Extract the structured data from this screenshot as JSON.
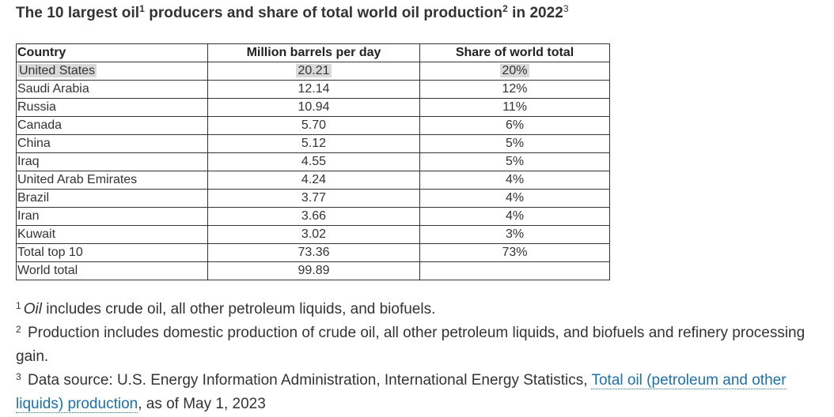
{
  "title": {
    "text_a": "The 10 largest oil",
    "sup_a": "1",
    "text_b": " producers and share of total world oil production",
    "sup_b": "2",
    "text_c": " in 2022",
    "sup_c": "3"
  },
  "table": {
    "headers": {
      "country": "Country",
      "mbd": "Million barrels per day",
      "share": "Share of world total"
    },
    "rows": [
      {
        "country": "United States",
        "mbd": "20.21",
        "share": "20%"
      },
      {
        "country": "Saudi Arabia",
        "mbd": "12.14",
        "share": "12%"
      },
      {
        "country": "Russia",
        "mbd": "10.94",
        "share": "11%"
      },
      {
        "country": "Canada",
        "mbd": "5.70",
        "share": "6%"
      },
      {
        "country": "China",
        "mbd": "5.12",
        "share": "5%"
      },
      {
        "country": "Iraq",
        "mbd": "4.55",
        "share": "5%"
      },
      {
        "country": "United Arab Emirates",
        "mbd": "4.24",
        "share": "4%"
      },
      {
        "country": "Brazil",
        "mbd": "3.77",
        "share": "4%"
      },
      {
        "country": "Iran",
        "mbd": "3.66",
        "share": "4%"
      },
      {
        "country": "Kuwait",
        "mbd": "3.02",
        "share": "3%"
      },
      {
        "country": "Total top 10",
        "mbd": "73.36",
        "share": "73%"
      },
      {
        "country": "World total",
        "mbd": "99.89",
        "share": ""
      }
    ]
  },
  "footnotes": {
    "f1_marker": "1",
    "f1_term": "Oil",
    "f1_text": " includes crude oil, all other petroleum liquids, and biofuels.",
    "f2_marker": "2",
    "f2_text": " Production includes domestic production of crude oil, all other petroleum liquids, and biofuels and refinery processing gain.",
    "f3_marker": "3",
    "f3_text": " Data source: U.S. Energy Information Administration, International Energy Statistics, ",
    "f3_link": "Total oil (petroleum and other liquids) production",
    "f3_suffix": ", as of May 1, 2023"
  }
}
